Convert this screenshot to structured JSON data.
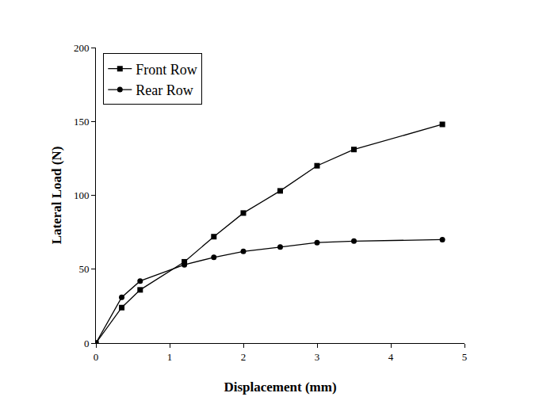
{
  "chart_data": {
    "type": "line",
    "x_label": "Displacement (mm)",
    "y_label": "Lateral Load (N)",
    "x": [
      0,
      0.35,
      0.6,
      1.2,
      1.6,
      2,
      2.5,
      3,
      3.5,
      4.7
    ],
    "series": [
      {
        "name": "Front Row",
        "color": "#000000",
        "marker": "square",
        "line_style": "solid",
        "values": [
          0,
          24,
          36,
          55,
          72,
          88,
          103,
          120,
          131,
          148
        ]
      },
      {
        "name": "Rear Row",
        "color": "#000000",
        "marker": "circle",
        "line_style": "solid",
        "values": [
          0,
          31,
          42,
          53,
          58,
          62,
          65,
          68,
          69,
          70
        ]
      }
    ],
    "xlim": [
      0,
      5
    ],
    "xticks": [
      0,
      1,
      2,
      3,
      4,
      5
    ],
    "ylim": [
      0,
      200
    ],
    "yticks": [
      0,
      50,
      100,
      150,
      200
    ],
    "grid": false,
    "legend": "upper left"
  }
}
